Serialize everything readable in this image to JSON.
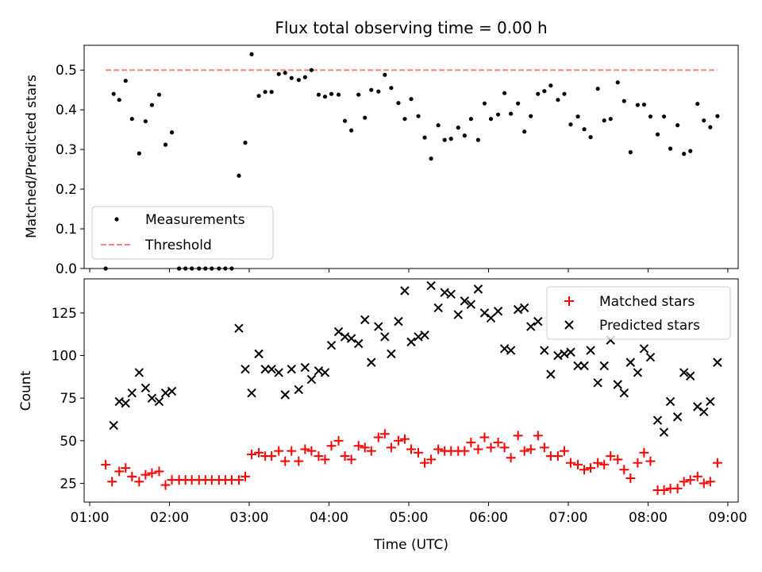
{
  "title": "Flux total observing time = 0.00 h",
  "xlabel": "Time (UTC)",
  "colors": {
    "measurement": "#000000",
    "threshold": "#ff7f7f",
    "matched": "#ff0000",
    "predicted": "#000000"
  },
  "chart_data": [
    {
      "type": "scatter",
      "ylabel": "Matched/Predicted stars",
      "xlim": [
        0.93,
        9.13
      ],
      "ylim": [
        0,
        0.5625
      ],
      "yticks": [
        0.0,
        0.1,
        0.2,
        0.3,
        0.4,
        0.5
      ],
      "ytick_labels": [
        "0.0",
        "0.1",
        "0.2",
        "0.3",
        "0.4",
        "0.5"
      ],
      "threshold": {
        "value": 0.5,
        "x_range": [
          1.2,
          8.87
        ]
      },
      "legend": {
        "position": "lower-left",
        "entries": [
          "Measurements",
          "Threshold"
        ]
      },
      "series": [
        {
          "name": "Measurements",
          "x": [
            1.2,
            1.3,
            1.37,
            1.45,
            1.53,
            1.62,
            1.7,
            1.78,
            1.87,
            1.95,
            2.03,
            2.12,
            2.2,
            2.28,
            2.37,
            2.45,
            2.53,
            2.62,
            2.7,
            2.78,
            2.87,
            2.95,
            3.03,
            3.12,
            3.2,
            3.28,
            3.37,
            3.45,
            3.53,
            3.62,
            3.7,
            3.78,
            3.87,
            3.95,
            4.03,
            4.12,
            4.2,
            4.28,
            4.37,
            4.45,
            4.53,
            4.62,
            4.7,
            4.78,
            4.87,
            4.95,
            5.03,
            5.12,
            5.2,
            5.28,
            5.37,
            5.45,
            5.53,
            5.62,
            5.7,
            5.78,
            5.87,
            5.95,
            6.03,
            6.12,
            6.2,
            6.28,
            6.37,
            6.45,
            6.53,
            6.62,
            6.7,
            6.78,
            6.87,
            6.95,
            7.03,
            7.12,
            7.2,
            7.28,
            7.37,
            7.45,
            7.53,
            7.62,
            7.7,
            7.78,
            7.87,
            7.95,
            8.03,
            8.12,
            8.2,
            8.28,
            8.37,
            8.45,
            8.53,
            8.62,
            8.7,
            8.78,
            8.87
          ],
          "y": [
            0.0,
            0.44,
            0.425,
            0.473,
            0.377,
            0.29,
            0.371,
            0.412,
            0.438,
            0.312,
            0.343,
            0.0,
            0.0,
            0.0,
            0.0,
            0.0,
            0.0,
            0.0,
            0.0,
            0.0,
            0.234,
            0.317,
            0.54,
            0.435,
            0.445,
            0.445,
            0.49,
            0.493,
            0.48,
            0.475,
            0.482,
            0.5,
            0.438,
            0.433,
            0.44,
            0.438,
            0.372,
            0.348,
            0.438,
            0.38,
            0.45,
            0.446,
            0.488,
            0.455,
            0.417,
            0.377,
            0.427,
            0.384,
            0.33,
            0.277,
            0.361,
            0.324,
            0.327,
            0.355,
            0.335,
            0.377,
            0.324,
            0.416,
            0.377,
            0.388,
            0.442,
            0.39,
            0.416,
            0.345,
            0.384,
            0.44,
            0.447,
            0.461,
            0.425,
            0.44,
            0.363,
            0.383,
            0.351,
            0.331,
            0.453,
            0.373,
            0.377,
            0.469,
            0.422,
            0.293,
            0.412,
            0.413,
            0.383,
            0.338,
            0.383,
            0.302,
            0.361,
            0.289,
            0.296,
            0.415,
            0.373,
            0.356,
            0.384
          ]
        }
      ]
    },
    {
      "type": "scatter",
      "ylabel": "Count",
      "xlim": [
        0.93,
        9.13
      ],
      "ylim": [
        14,
        145
      ],
      "yticks": [
        25,
        50,
        75,
        100,
        125
      ],
      "ytick_labels": [
        "25",
        "50",
        "75",
        "100",
        "125"
      ],
      "xticks": [
        1,
        2,
        3,
        4,
        5,
        6,
        7,
        8,
        9
      ],
      "xtick_labels": [
        "01:00",
        "02:00",
        "03:00",
        "04:00",
        "05:00",
        "06:00",
        "07:00",
        "08:00",
        "09:00"
      ],
      "legend": {
        "position": "upper-right",
        "entries": [
          "Matched stars",
          "Predicted stars"
        ]
      },
      "series": [
        {
          "name": "Matched stars",
          "marker": "+",
          "x": [
            1.2,
            1.28,
            1.37,
            1.45,
            1.53,
            1.62,
            1.7,
            1.78,
            1.87,
            1.95,
            2.03,
            2.12,
            2.2,
            2.28,
            2.37,
            2.45,
            2.53,
            2.62,
            2.7,
            2.78,
            2.87,
            2.95,
            3.03,
            3.12,
            3.2,
            3.28,
            3.37,
            3.45,
            3.53,
            3.62,
            3.7,
            3.78,
            3.87,
            3.95,
            4.03,
            4.12,
            4.2,
            4.28,
            4.37,
            4.45,
            4.53,
            4.62,
            4.7,
            4.78,
            4.87,
            4.95,
            5.03,
            5.12,
            5.2,
            5.28,
            5.37,
            5.45,
            5.53,
            5.62,
            5.7,
            5.78,
            5.87,
            5.95,
            6.03,
            6.12,
            6.2,
            6.28,
            6.37,
            6.45,
            6.53,
            6.62,
            6.7,
            6.78,
            6.87,
            6.95,
            7.03,
            7.12,
            7.2,
            7.28,
            7.37,
            7.45,
            7.53,
            7.62,
            7.7,
            7.78,
            7.87,
            7.95,
            8.03,
            8.12,
            8.2,
            8.28,
            8.37,
            8.45,
            8.53,
            8.62,
            8.7,
            8.78,
            8.87
          ],
          "y": [
            36,
            26,
            32,
            34,
            29,
            26,
            30,
            31,
            32,
            24,
            27,
            27,
            27,
            27,
            27,
            27,
            27,
            27,
            27,
            27,
            27,
            29,
            42,
            43,
            41,
            41,
            44,
            38,
            44,
            38,
            45,
            44,
            41,
            39,
            47,
            50,
            41,
            39,
            47,
            46,
            44,
            52,
            54,
            46,
            50,
            51,
            45,
            43,
            37,
            39,
            45,
            44,
            44,
            44,
            44,
            49,
            45,
            52,
            46,
            49,
            46,
            40,
            53,
            44,
            45,
            53,
            46,
            41,
            41,
            44,
            37,
            36,
            33,
            34,
            37,
            36,
            41,
            39,
            33,
            28,
            37,
            43,
            38,
            21,
            21,
            22,
            22,
            26,
            27,
            29,
            25,
            26,
            37
          ]
        },
        {
          "name": "Predicted stars",
          "marker": "x",
          "x": [
            1.3,
            1.37,
            1.45,
            1.53,
            1.62,
            1.7,
            1.78,
            1.87,
            1.95,
            2.03,
            2.87,
            2.95,
            3.03,
            3.12,
            3.2,
            3.28,
            3.37,
            3.45,
            3.53,
            3.62,
            3.7,
            3.78,
            3.87,
            3.95,
            4.03,
            4.12,
            4.2,
            4.28,
            4.37,
            4.45,
            4.53,
            4.62,
            4.7,
            4.78,
            4.87,
            4.95,
            5.03,
            5.12,
            5.2,
            5.28,
            5.37,
            5.45,
            5.53,
            5.62,
            5.7,
            5.78,
            5.87,
            5.95,
            6.03,
            6.12,
            6.2,
            6.28,
            6.37,
            6.45,
            6.53,
            6.62,
            6.7,
            6.78,
            6.87,
            6.95,
            7.03,
            7.12,
            7.2,
            7.28,
            7.37,
            7.45,
            7.53,
            7.62,
            7.7,
            7.78,
            7.87,
            7.95,
            8.03,
            8.12,
            8.2,
            8.28,
            8.37,
            8.45,
            8.53,
            8.62,
            8.7,
            8.78,
            8.87
          ],
          "y": [
            59,
            73,
            72,
            78,
            90,
            81,
            75,
            73,
            78,
            79,
            116,
            92,
            78,
            101,
            92,
            92,
            90,
            77,
            92,
            80,
            93,
            86,
            91,
            90,
            106,
            114,
            111,
            110,
            107,
            121,
            96,
            117,
            111,
            101,
            120,
            138,
            108,
            111,
            112,
            141,
            128,
            137,
            136,
            124,
            132,
            130,
            139,
            125,
            122,
            126,
            104,
            103,
            127,
            128,
            117,
            120,
            103,
            89,
            100,
            101,
            102,
            94,
            94,
            103,
            84,
            94,
            109,
            83,
            78,
            96,
            90,
            104,
            99,
            62,
            55,
            73,
            64,
            90,
            88,
            70,
            67,
            73,
            96
          ]
        }
      ]
    }
  ]
}
